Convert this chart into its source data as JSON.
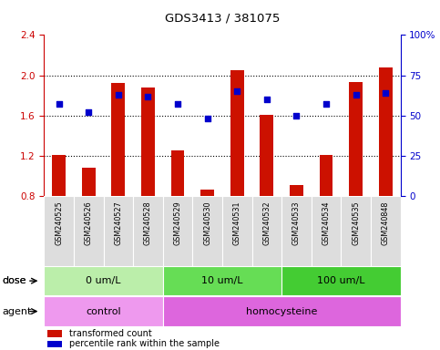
{
  "title": "GDS3413 / 381075",
  "samples": [
    "GSM240525",
    "GSM240526",
    "GSM240527",
    "GSM240528",
    "GSM240529",
    "GSM240530",
    "GSM240531",
    "GSM240532",
    "GSM240533",
    "GSM240534",
    "GSM240535",
    "GSM240848"
  ],
  "transformed_count": [
    1.21,
    1.08,
    1.92,
    1.88,
    1.25,
    0.86,
    2.05,
    1.61,
    0.91,
    1.21,
    1.93,
    2.08
  ],
  "percentile_rank": [
    57,
    52,
    63,
    62,
    57,
    48,
    65,
    60,
    50,
    57,
    63,
    64
  ],
  "bar_color": "#cc1100",
  "dot_color": "#0000cc",
  "ylim_left": [
    0.8,
    2.4
  ],
  "ylim_right": [
    0,
    100
  ],
  "yticks_left": [
    0.8,
    1.2,
    1.6,
    2.0,
    2.4
  ],
  "yticks_right": [
    0,
    25,
    50,
    75,
    100
  ],
  "ytick_labels_left": [
    "0.8",
    "1.2",
    "1.6",
    "2.0",
    "2.4"
  ],
  "ytick_labels_right": [
    "0",
    "25",
    "50",
    "75",
    "100%"
  ],
  "dose_groups": [
    {
      "label": "0 um/L",
      "start": 0,
      "end": 4,
      "color": "#bbeeaa"
    },
    {
      "label": "10 um/L",
      "start": 4,
      "end": 8,
      "color": "#66dd55"
    },
    {
      "label": "100 um/L",
      "start": 8,
      "end": 12,
      "color": "#44cc33"
    }
  ],
  "agent_groups": [
    {
      "label": "control",
      "start": 0,
      "end": 4,
      "color": "#ee99ee"
    },
    {
      "label": "homocysteine",
      "start": 4,
      "end": 12,
      "color": "#dd66dd"
    }
  ],
  "bar_bottom": 0.8,
  "tick_label_color_left": "#cc0000",
  "tick_label_color_right": "#0000cc",
  "sample_box_color": "#dddddd",
  "chart_bg": "#ffffff"
}
